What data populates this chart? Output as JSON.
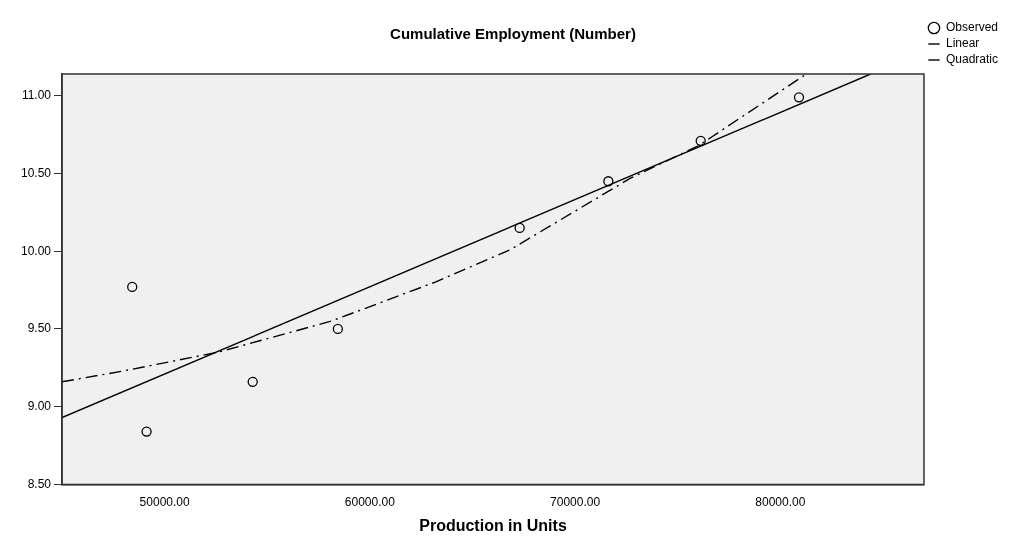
{
  "chart_data": {
    "type": "scatter",
    "title": "Cumulative Employment (Number)",
    "xlabel": "Production in Units",
    "xlim": [
      45000,
      87000
    ],
    "xticks": [
      {
        "value": 50000,
        "label": "50000.00"
      },
      {
        "value": 60000,
        "label": "60000.00"
      },
      {
        "value": 70000,
        "label": "70000.00"
      },
      {
        "value": 80000,
        "label": "80000.00"
      }
    ],
    "ylim": [
      8.5,
      11.14
    ],
    "yticks": [
      {
        "value": 8.5,
        "label": "8.50"
      },
      {
        "value": 9,
        "label": "9.00"
      },
      {
        "value": 9.5,
        "label": "9.50"
      },
      {
        "value": 10,
        "label": "10.00"
      },
      {
        "value": 10.5,
        "label": "10.50"
      },
      {
        "value": 11,
        "label": "11.00"
      }
    ],
    "grid": false,
    "legend": "top right",
    "series": [
      {
        "name": "Observed",
        "marker": "circle",
        "color": "#000000",
        "x": [
          48420,
          49120,
          54290,
          58440,
          67300,
          71620,
          76120,
          80910
        ],
        "values": [
          9.77,
          8.84,
          9.16,
          9.5,
          10.15,
          10.45,
          10.71,
          10.99
        ]
      },
      {
        "name": "Linear",
        "type": "line",
        "line_style": "solid",
        "color": "#000000",
        "x": [
          45000,
          84400
        ],
        "values": [
          8.93,
          11.14
        ]
      },
      {
        "name": "Quadratic",
        "type": "line",
        "line_style": "dashed",
        "color": "#000000",
        "x": [
          45000,
          48000,
          52590,
          58110,
          63160,
          66840,
          72700,
          76030,
          81270
        ],
        "values": [
          9.16,
          9.23,
          9.35,
          9.55,
          9.8,
          10.01,
          10.47,
          10.68,
          11.14
        ]
      }
    ]
  }
}
